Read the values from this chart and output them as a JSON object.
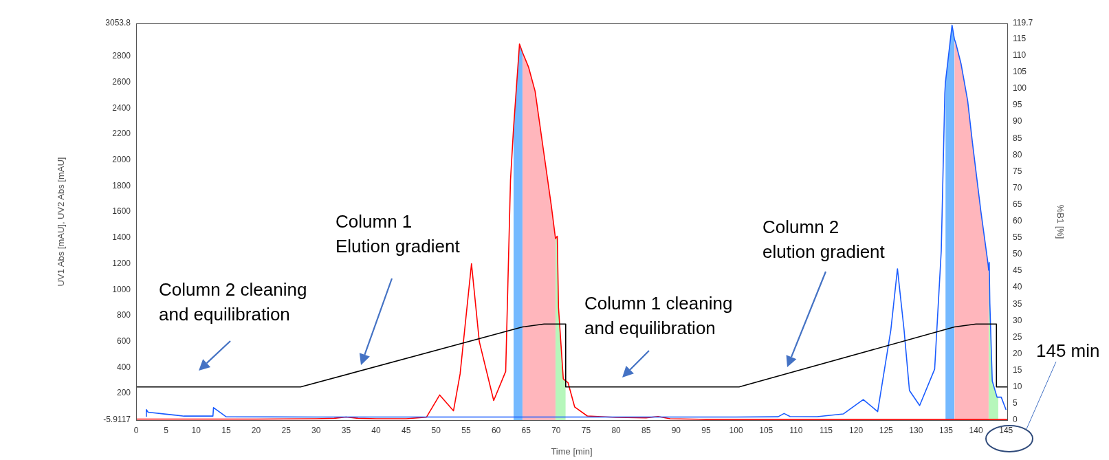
{
  "chart_data": {
    "type": "line",
    "xlabel": "Time [min]",
    "ylabel": "UV1 Abs [mAU], UV2 Abs [mAU]",
    "y2label": "%B1 [%]",
    "xlim": [
      0,
      145.2
    ],
    "xticks": [
      0,
      5,
      10,
      15,
      20,
      25,
      30,
      35,
      40,
      45,
      50,
      55,
      60,
      65,
      70,
      75,
      80,
      85,
      90,
      95,
      100,
      105,
      110,
      115,
      120,
      125,
      130,
      135,
      140,
      145
    ],
    "ylim": [
      -5.9117,
      3053.8
    ],
    "yticks": [
      -5.9117,
      200,
      400,
      600,
      800,
      1000,
      1200,
      1400,
      1600,
      1800,
      2000,
      2200,
      2400,
      2600,
      2800,
      3053.8
    ],
    "y2lim": [
      0,
      119.7
    ],
    "y2ticks": [
      0,
      5,
      10,
      15,
      20,
      25,
      30,
      35,
      40,
      45,
      50,
      55,
      60,
      65,
      70,
      75,
      80,
      85,
      90,
      95,
      100,
      105,
      110,
      115,
      119.7
    ],
    "series": [
      {
        "type": "area",
        "color": "#74b9ff",
        "x": [
          62.9,
          63.9,
          64.4
        ],
        "values": [
          2240,
          2895,
          2830
        ]
      },
      {
        "type": "area",
        "color": "#ffb6bc",
        "x": [
          64.4,
          65.4,
          66.5,
          68,
          69.2,
          69.9
        ],
        "values": [
          2830,
          2718,
          2531,
          2041,
          1649,
          1394
        ]
      },
      {
        "type": "area",
        "color": "#b6f7bb",
        "x": [
          69.9,
          70.2,
          70.4,
          71.2,
          71.6
        ],
        "values": [
          1394,
          1412,
          864,
          312,
          290
        ]
      },
      {
        "type": "area",
        "color": "#74b9ff",
        "x": [
          134.9,
          136.0,
          136.4
        ],
        "values": [
          2600,
          3040,
          2930
        ]
      },
      {
        "type": "area",
        "color": "#ffb6bc",
        "x": [
          136.4,
          137.5,
          138.6,
          139.4,
          140.8,
          142.0,
          142.1
        ],
        "values": [
          2930,
          2742,
          2458,
          2133,
          1606,
          1198,
          1150
        ]
      },
      {
        "type": "area",
        "color": "#b6f7bb",
        "x": [
          142.1,
          142.2,
          142.3,
          142.7,
          143.5,
          143.7
        ],
        "values": [
          1150,
          1210,
          896,
          296,
          171,
          171
        ]
      },
      {
        "type": "line",
        "color": "#ff0000",
        "x": [
          0,
          10,
          20,
          30,
          33,
          35,
          37,
          40,
          45,
          48.4,
          50.6,
          52.9,
          54,
          55.9,
          57.2,
          59.6,
          61.6,
          62.4,
          62.9,
          63.9,
          64.4,
          65.4,
          66.5,
          68,
          69.2,
          69.9,
          70.2,
          70.4,
          71.2,
          72,
          73.1,
          75.2,
          80,
          85,
          87,
          89,
          95,
          145.2
        ],
        "values": [
          2,
          2,
          2,
          5,
          8,
          18,
          8,
          5,
          5,
          17,
          188,
          66,
          350,
          1200,
          600,
          145,
          370,
          1845,
          2240,
          2895,
          2830,
          2718,
          2531,
          2041,
          1649,
          1394,
          1412,
          864,
          312,
          282,
          95,
          26,
          15,
          12,
          22,
          5,
          0,
          0
        ]
      },
      {
        "type": "line",
        "color": "#1a5cff",
        "x": [
          1.7,
          1.7,
          2,
          5,
          8,
          12.8,
          12.9,
          13.5,
          15,
          30,
          60,
          100,
          107,
          108,
          109,
          113.5,
          117.9,
          121.2,
          123.6,
          125.8,
          126.9,
          128,
          128.9,
          130.6,
          133.1,
          134.2,
          134.8,
          134.9,
          136.0,
          136.4,
          136.6,
          137.5,
          138.6,
          139.4,
          140.8,
          142.0,
          142.1,
          142.2,
          142.3,
          142.7,
          143.5,
          143.7,
          144.2,
          145.0
        ],
        "values": [
          20,
          75,
          55,
          40,
          25,
          25,
          90,
          70,
          20,
          18,
          18,
          18,
          20,
          45,
          22,
          21,
          42,
          153,
          60,
          690,
          1161,
          690,
          222,
          107,
          387,
          1300,
          2518,
          2600,
          3040,
          2930,
          2905,
          2742,
          2458,
          2133,
          1606,
          1198,
          1150,
          1210,
          896,
          296,
          171,
          171,
          171,
          74
        ]
      },
      {
        "type": "line",
        "color": "#000000",
        "axis": "y2",
        "x": [
          0,
          27.4,
          64.4,
          68,
          71.6,
          71.6,
          100.5,
          136.4,
          140,
          143.4,
          143.4,
          145.2
        ],
        "values": [
          10,
          10,
          28.1,
          29,
          29,
          10,
          10,
          28.1,
          29,
          29,
          10,
          10
        ]
      }
    ],
    "annotations": [
      "Column 2 cleaning\nand equilibration",
      "Column 1\nElution gradient",
      "Column 1 cleaning\nand equilibration",
      "Column 2\nelution gradient",
      "145 min"
    ]
  }
}
